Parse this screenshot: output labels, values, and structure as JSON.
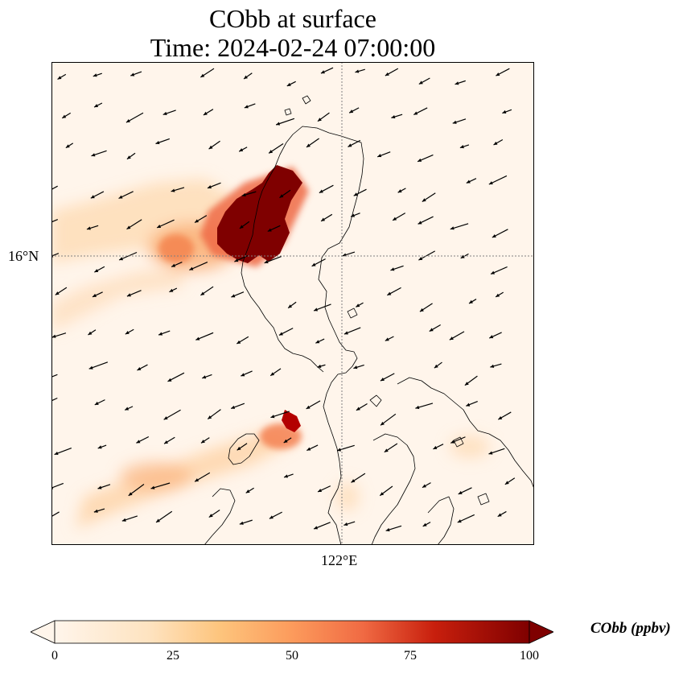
{
  "title": {
    "line1": "CObb at surface",
    "line2": "Time: 2024-02-24 07:00:00"
  },
  "axes": {
    "lat_label": "16°N",
    "lon_label": "122°E"
  },
  "colorbar": {
    "label": "CObb (ppbv)",
    "ticks": [
      "0",
      "25",
      "50",
      "75",
      "100"
    ],
    "min": 0,
    "max": 100,
    "extend": "both",
    "colormap": [
      "#fff5eb",
      "#fee6ce",
      "#fdd0a2",
      "#fdae6b",
      "#fd8d3c",
      "#f16913",
      "#d94801",
      "#a63603",
      "#7f2704"
    ]
  },
  "colors": {
    "background_low": "#fff5eb",
    "high": "#7f0000",
    "coast": "#000000",
    "gridline": "#808080"
  }
}
